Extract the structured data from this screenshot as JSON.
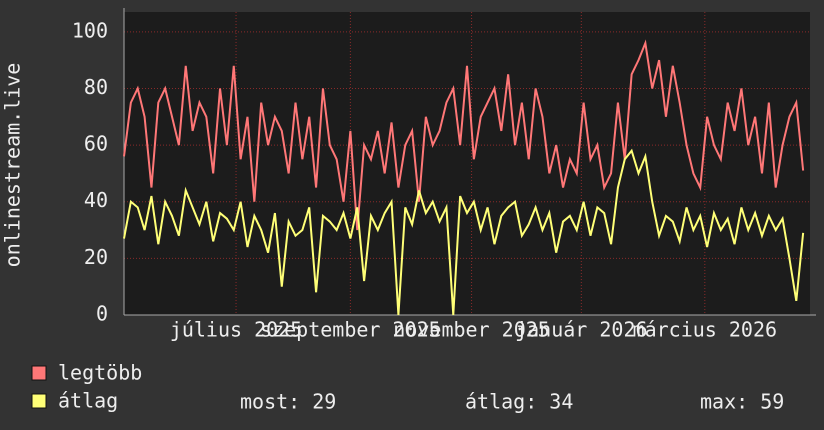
{
  "chart_data": {
    "type": "line",
    "y_label": "onlinestream.live",
    "x": [
      0,
      3,
      6,
      9,
      12,
      15,
      18,
      21,
      24,
      27,
      30,
      33,
      36,
      39,
      42,
      45,
      48,
      51,
      54,
      57,
      60,
      63,
      66,
      69,
      72,
      75,
      78,
      81,
      84,
      87,
      90,
      93,
      96,
      99,
      102,
      105,
      108,
      111,
      114,
      117,
      120,
      123,
      126,
      129,
      132,
      135,
      138,
      141,
      144,
      147,
      150,
      153,
      156,
      159,
      162,
      165,
      168,
      171,
      174,
      177,
      180,
      183,
      186,
      189,
      192,
      195,
      198,
      201,
      204,
      207,
      210,
      213,
      216,
      219,
      222,
      225,
      228,
      231,
      234,
      237,
      240,
      243,
      246,
      249,
      252,
      255,
      258,
      261,
      264,
      267,
      270,
      273,
      276,
      279,
      282,
      285,
      288,
      291,
      294,
      297
    ],
    "xlim": [
      0,
      300
    ],
    "xticks": [
      {
        "value": 49,
        "label": "július 2025"
      },
      {
        "value": 99,
        "label": "szeptember 2025"
      },
      {
        "value": 152,
        "label": "november 2025"
      },
      {
        "value": 200,
        "label": "január 2026"
      },
      {
        "value": 254,
        "label": "március 2026"
      }
    ],
    "ylim": [
      0,
      107
    ],
    "yticks": [
      0,
      20,
      40,
      60,
      80,
      100
    ],
    "grid": true,
    "series": [
      {
        "name": "legtöbb",
        "color": "#ff7777",
        "values": [
          56,
          75,
          80,
          70,
          45,
          75,
          80,
          70,
          60,
          88,
          65,
          75,
          70,
          50,
          80,
          60,
          88,
          55,
          70,
          40,
          75,
          60,
          70,
          65,
          50,
          75,
          55,
          70,
          45,
          80,
          60,
          55,
          40,
          65,
          30,
          60,
          55,
          65,
          50,
          68,
          45,
          60,
          65,
          40,
          70,
          60,
          65,
          75,
          80,
          60,
          88,
          55,
          70,
          75,
          80,
          65,
          85,
          60,
          75,
          55,
          80,
          70,
          50,
          60,
          45,
          55,
          50,
          75,
          55,
          60,
          45,
          50,
          75,
          55,
          85,
          90,
          96,
          80,
          90,
          70,
          88,
          75,
          60,
          50,
          45,
          70,
          60,
          55,
          75,
          65,
          80,
          60,
          70,
          50,
          75,
          45,
          60,
          70,
          75,
          51
        ]
      },
      {
        "name": "átlag",
        "color": "#ffff77",
        "values": [
          27,
          40,
          38,
          30,
          42,
          25,
          40,
          35,
          28,
          44,
          38,
          32,
          40,
          26,
          36,
          34,
          30,
          40,
          24,
          35,
          30,
          22,
          36,
          10,
          33,
          28,
          30,
          38,
          8,
          35,
          33,
          30,
          36,
          27,
          38,
          12,
          35,
          30,
          36,
          40,
          0,
          38,
          32,
          44,
          36,
          40,
          33,
          38,
          0,
          42,
          36,
          40,
          30,
          38,
          25,
          35,
          38,
          40,
          28,
          32,
          38,
          30,
          36,
          22,
          33,
          35,
          30,
          40,
          28,
          38,
          36,
          25,
          45,
          55,
          58,
          50,
          56,
          40,
          28,
          35,
          33,
          26,
          38,
          30,
          35,
          24,
          36,
          30,
          34,
          25,
          38,
          30,
          36,
          28,
          35,
          30,
          34,
          20,
          5,
          29
        ]
      }
    ],
    "stats": [
      "most: 29",
      "átlag: 34",
      "max: 59"
    ]
  }
}
